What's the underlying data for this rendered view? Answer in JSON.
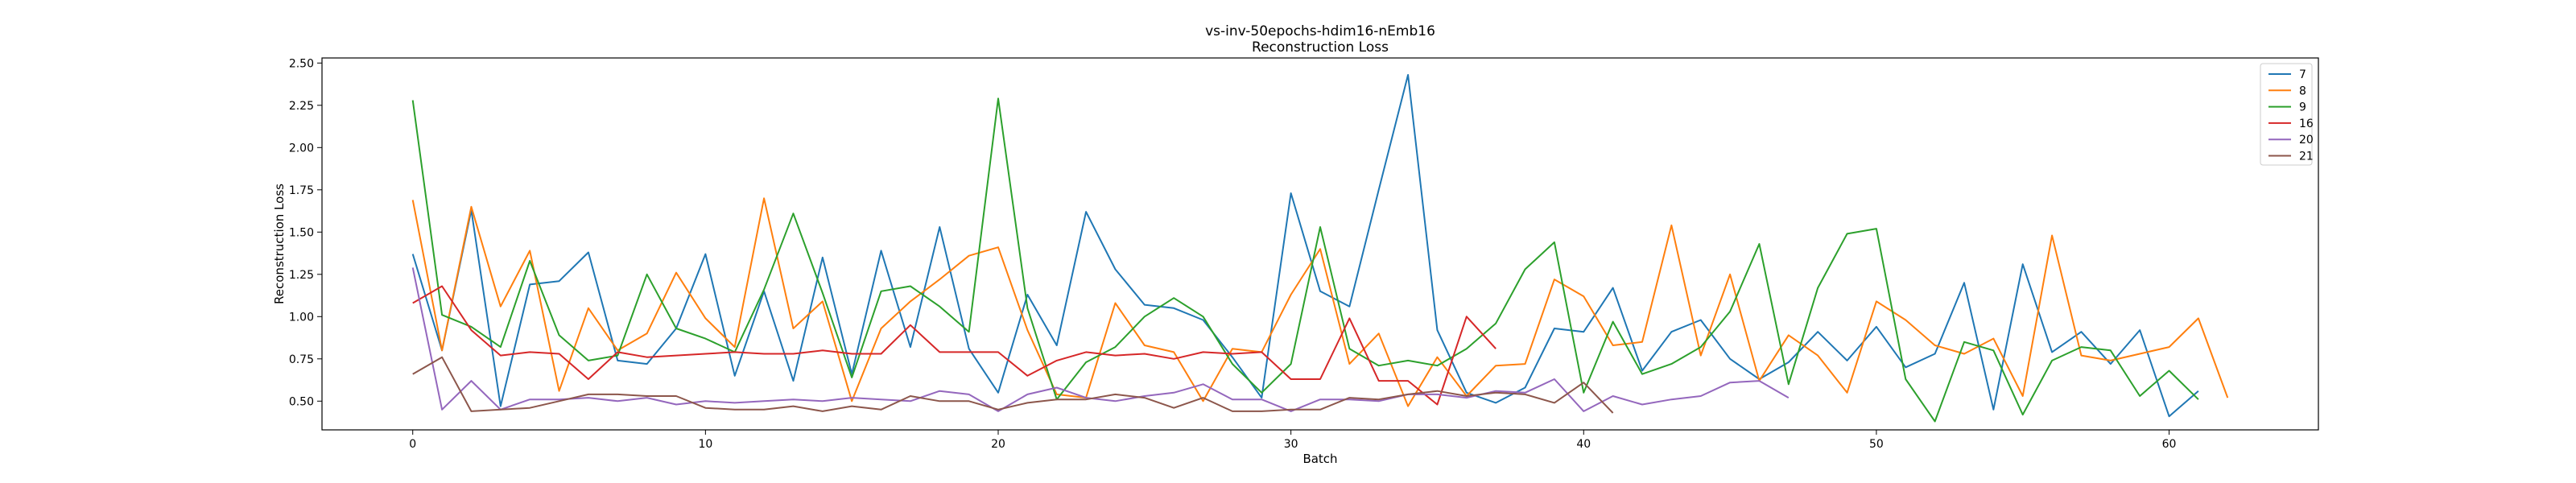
{
  "chart_data": {
    "type": "line",
    "title": "vs-inv-50epochs-hdim16-nEmb16",
    "subtitle": "Reconstruction Loss",
    "xlabel": "Batch",
    "ylabel": "Reconstruction Loss",
    "xlim": [
      -3.1,
      65.1
    ],
    "ylim": [
      0.33,
      2.53
    ],
    "xticks": [
      0,
      10,
      20,
      30,
      40,
      50,
      60
    ],
    "yticks": [
      0.5,
      0.75,
      1.0,
      1.25,
      1.5,
      1.75,
      2.0,
      2.25,
      2.5
    ],
    "grid": false,
    "legend_position": "top-right",
    "series": [
      {
        "name": "7",
        "color": "#1f77b4",
        "values": [
          1.37,
          0.8,
          1.63,
          0.47,
          1.19,
          1.21,
          1.38,
          0.74,
          0.72,
          0.93,
          1.37,
          0.65,
          1.15,
          0.62,
          1.35,
          0.66,
          1.39,
          0.82,
          1.53,
          0.81,
          0.55,
          1.13,
          0.83,
          1.62,
          1.28,
          1.07,
          1.05,
          0.98,
          0.76,
          0.52,
          1.73,
          1.15,
          1.06,
          1.75,
          2.43,
          0.92,
          0.55,
          0.49,
          0.58,
          0.93,
          0.91,
          1.17,
          0.68,
          0.91,
          0.98,
          0.75,
          0.63,
          0.73,
          0.91,
          0.74,
          0.94,
          0.7,
          0.78,
          1.2,
          0.45,
          1.31,
          0.79,
          0.91,
          0.72,
          0.92,
          0.41,
          0.56
        ]
      },
      {
        "name": "8",
        "color": "#ff7f0e",
        "values": [
          1.69,
          0.8,
          1.65,
          1.06,
          1.39,
          0.56,
          1.05,
          0.8,
          0.9,
          1.26,
          0.99,
          0.82,
          1.7,
          0.93,
          1.09,
          0.5,
          0.93,
          1.09,
          1.22,
          1.36,
          1.41,
          0.92,
          0.54,
          0.52,
          1.08,
          0.83,
          0.79,
          0.5,
          0.81,
          0.79,
          1.13,
          1.4,
          0.72,
          0.9,
          0.47,
          0.76,
          0.53,
          0.71,
          0.72,
          1.22,
          1.12,
          0.83,
          0.85,
          1.54,
          0.77,
          1.25,
          0.62,
          0.89,
          0.77,
          0.55,
          1.09,
          0.98,
          0.83,
          0.78,
          0.87,
          0.53,
          1.48,
          0.77,
          0.74,
          0.78,
          0.82,
          0.99,
          0.52
        ]
      },
      {
        "name": "9",
        "color": "#2ca02c",
        "values": [
          2.28,
          1.01,
          0.94,
          0.82,
          1.33,
          0.89,
          0.74,
          0.77,
          1.25,
          0.93,
          0.87,
          0.79,
          1.16,
          1.61,
          1.14,
          0.64,
          1.15,
          1.18,
          1.06,
          0.91,
          2.29,
          1.05,
          0.51,
          0.73,
          0.82,
          1.0,
          1.11,
          1.0,
          0.72,
          0.55,
          0.72,
          1.53,
          0.81,
          0.71,
          0.74,
          0.71,
          0.81,
          0.96,
          1.28,
          1.44,
          0.55,
          0.97,
          0.66,
          0.72,
          0.82,
          1.03,
          1.43,
          0.6,
          1.17,
          1.49,
          1.52,
          0.63,
          0.38,
          0.85,
          0.8,
          0.42,
          0.74,
          0.82,
          0.8,
          0.53,
          0.68,
          0.51
        ]
      },
      {
        "name": "16",
        "color": "#d62728",
        "values": [
          1.08,
          1.18,
          0.92,
          0.77,
          0.79,
          0.78,
          0.63,
          0.79,
          0.76,
          0.77,
          0.78,
          0.79,
          0.78,
          0.78,
          0.8,
          0.78,
          0.78,
          0.95,
          0.79,
          0.79,
          0.79,
          0.65,
          0.74,
          0.79,
          0.77,
          0.78,
          0.75,
          0.79,
          0.78,
          0.79,
          0.63,
          0.63,
          0.99,
          0.62,
          0.62,
          0.48,
          1.0,
          0.81
        ]
      },
      {
        "name": "20",
        "color": "#9467bd",
        "values": [
          1.29,
          0.45,
          0.62,
          0.45,
          0.51,
          0.51,
          0.52,
          0.5,
          0.52,
          0.48,
          0.5,
          0.49,
          0.5,
          0.51,
          0.5,
          0.52,
          0.51,
          0.5,
          0.56,
          0.54,
          0.44,
          0.54,
          0.58,
          0.52,
          0.5,
          0.53,
          0.55,
          0.6,
          0.51,
          0.51,
          0.44,
          0.51,
          0.51,
          0.5,
          0.54,
          0.54,
          0.52,
          0.56,
          0.55,
          0.63,
          0.44,
          0.53,
          0.48,
          0.51,
          0.53,
          0.61,
          0.62,
          0.52
        ]
      },
      {
        "name": "21",
        "color": "#8c564b",
        "values": [
          0.66,
          0.76,
          0.44,
          0.45,
          0.46,
          0.5,
          0.54,
          0.54,
          0.53,
          0.53,
          0.46,
          0.45,
          0.45,
          0.47,
          0.44,
          0.47,
          0.45,
          0.53,
          0.5,
          0.5,
          0.45,
          0.49,
          0.51,
          0.51,
          0.54,
          0.52,
          0.46,
          0.52,
          0.44,
          0.44,
          0.45,
          0.45,
          0.52,
          0.51,
          0.54,
          0.56,
          0.53,
          0.55,
          0.54,
          0.49,
          0.61,
          0.43
        ]
      }
    ]
  }
}
